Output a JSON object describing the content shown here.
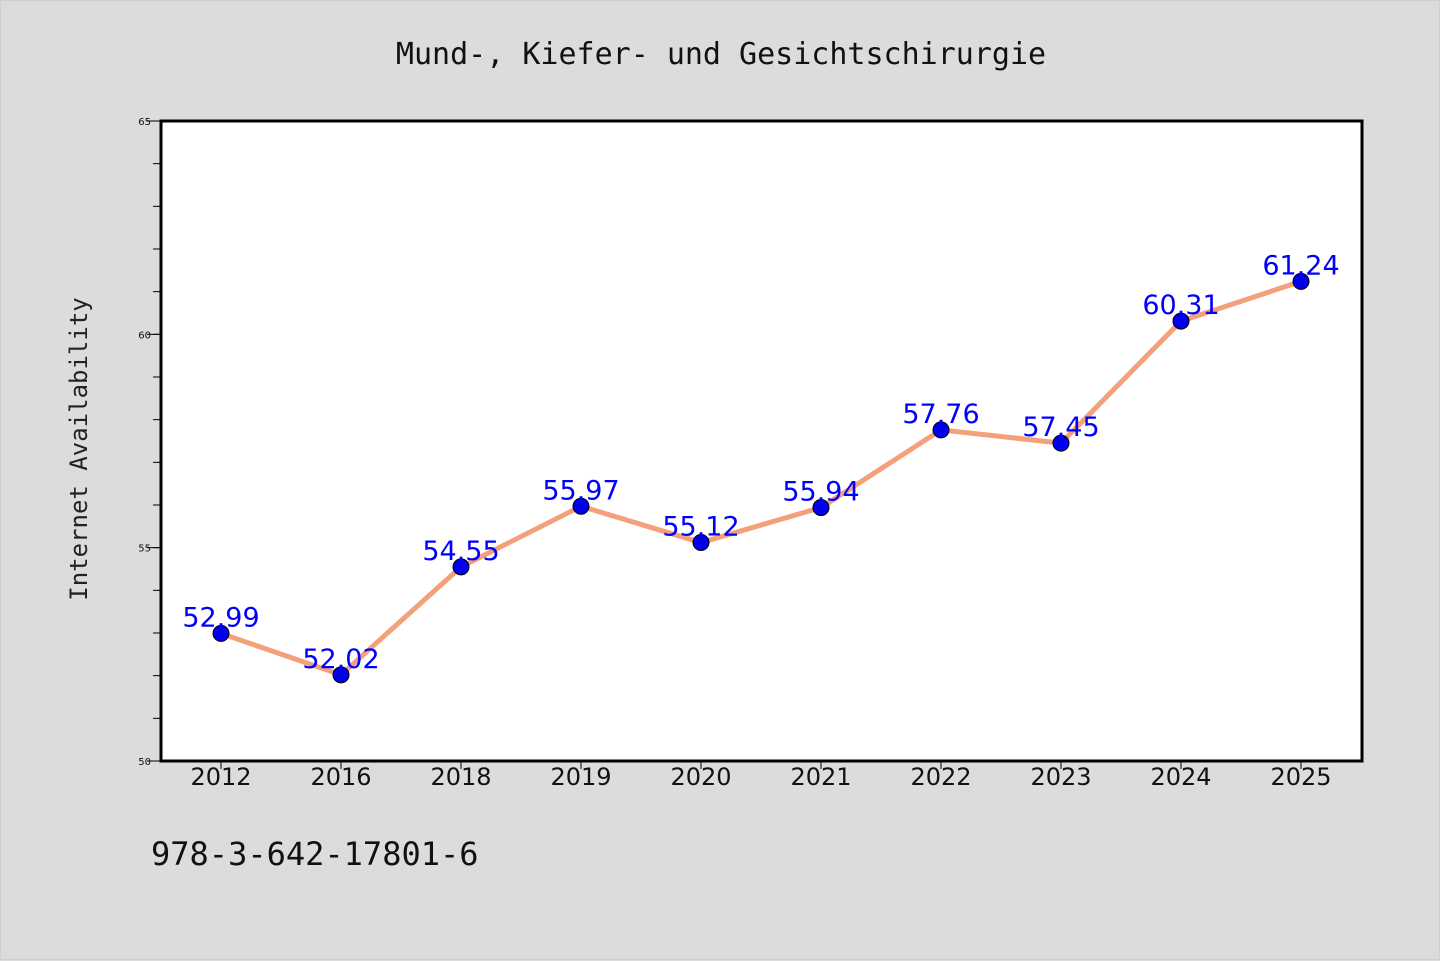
{
  "chart_data": {
    "type": "line",
    "title": "Mund-, Kiefer- und Gesichtschirurgie",
    "xlabel": "",
    "ylabel": "Internet Availability",
    "categories": [
      "2012",
      "2016",
      "2018",
      "2019",
      "2020",
      "2021",
      "2022",
      "2023",
      "2024",
      "2025"
    ],
    "series": [
      {
        "values": [
          52.99,
          52.02,
          54.55,
          55.97,
          55.12,
          55.94,
          57.76,
          57.45,
          60.31,
          61.24
        ],
        "labels": [
          "52.99",
          "52.02",
          "54.55",
          "55.97",
          "55.12",
          "55.94",
          "57.76",
          "57.45",
          "60.31",
          "61.24"
        ],
        "line_color": "#f4a07a",
        "marker_color": "#0000ee"
      }
    ],
    "ylim": [
      50,
      65
    ],
    "yticks": [
      "50",
      "55",
      "60",
      "65"
    ],
    "grid": false,
    "data_label_color": "#0000ff"
  },
  "footnote": "978-3-642-17801-6",
  "colors": {
    "background": "#dcdcdc",
    "plot_background": "#ffffff"
  }
}
